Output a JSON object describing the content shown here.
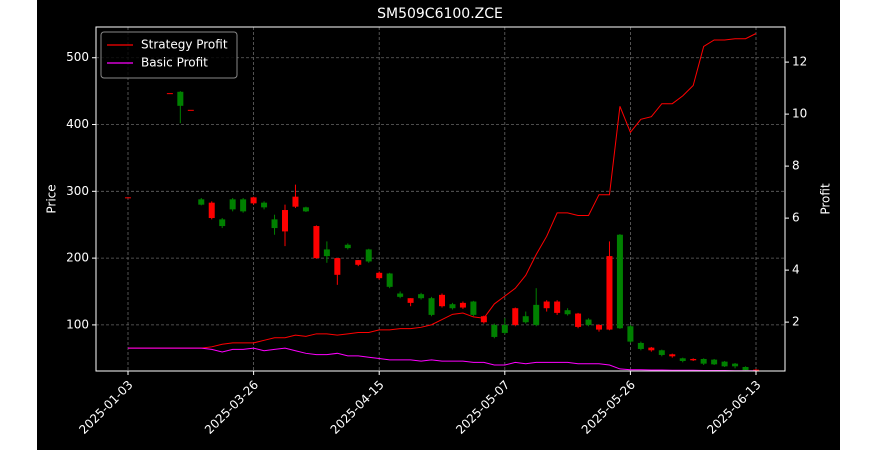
{
  "chart_data": {
    "type": "candlestick",
    "title": "SM509C6100.ZCE",
    "ylabel": "Price",
    "y2label": "Profit",
    "categories": [
      "2025-01-03",
      null,
      null,
      null,
      null,
      null,
      null,
      null,
      null,
      null,
      null,
      null,
      "2025-03-26",
      null,
      null,
      null,
      null,
      null,
      null,
      null,
      null,
      null,
      null,
      null,
      "2025-04-15",
      null,
      null,
      null,
      null,
      null,
      null,
      null,
      null,
      null,
      null,
      null,
      "2025-05-07",
      null,
      null,
      null,
      null,
      null,
      null,
      null,
      null,
      null,
      null,
      null,
      "2025-05-26",
      null,
      null,
      null,
      null,
      null,
      null,
      null,
      null,
      null,
      null,
      null,
      "2025-06-13"
    ],
    "ohlc": {
      "open": [
        291,
        null,
        null,
        null,
        447,
        449,
        422,
        288,
        260,
        258,
        288,
        288,
        282,
        283,
        258,
        240,
        277,
        276,
        200,
        213,
        175,
        220,
        190,
        213,
        170,
        177,
        147,
        133,
        146,
        140,
        128,
        131,
        126,
        135,
        104,
        100,
        100,
        100,
        113,
        130,
        125,
        118,
        122,
        97,
        108,
        93,
        93,
        235,
        98,
        73,
        62,
        62,
        53,
        50,
        47,
        49,
        48,
        45,
        42,
        37,
        31
      ],
      "high": [
        291,
        null,
        null,
        null,
        447,
        450,
        422,
        290,
        285,
        260,
        290,
        290,
        292,
        285,
        265,
        280,
        310,
        277,
        249,
        225,
        200,
        222,
        197,
        214,
        180,
        178,
        150,
        140,
        148,
        142,
        147,
        133,
        135,
        136,
        114,
        102,
        110,
        126,
        120,
        155,
        137,
        137,
        125,
        118,
        110,
        101,
        225,
        236,
        100,
        75,
        67,
        63,
        57,
        51,
        50,
        50,
        49,
        46,
        43,
        38,
        34
      ],
      "low": [
        291,
        null,
        null,
        null,
        447,
        402,
        422,
        279,
        258,
        245,
        270,
        268,
        280,
        273,
        235,
        218,
        275,
        269,
        199,
        193,
        160,
        213,
        188,
        193,
        168,
        155,
        140,
        128,
        138,
        113,
        126,
        123,
        124,
        113,
        102,
        80,
        86,
        98,
        102,
        98,
        120,
        115,
        114,
        95,
        98,
        90,
        92,
        94,
        73,
        62,
        60,
        53,
        51,
        44,
        46,
        40,
        40,
        37,
        35,
        31,
        31
      ],
      "close": [
        291,
        null,
        null,
        null,
        447,
        428,
        422,
        280,
        283,
        248,
        273,
        270,
        291,
        276,
        245,
        272,
        292,
        270,
        248,
        203,
        200,
        215,
        197,
        195,
        178,
        157,
        142,
        140,
        140,
        115,
        145,
        125,
        133,
        115,
        113,
        82,
        88,
        125,
        104,
        100,
        135,
        135,
        116,
        117,
        100,
        100,
        203,
        95,
        75,
        64,
        66,
        55,
        56,
        46,
        49,
        42,
        41,
        38,
        38,
        32,
        33
      ]
    },
    "up_color": "#ff0000",
    "down_color": "#008000",
    "series": [
      {
        "name": "Strategy Profit",
        "color": "#ff0000",
        "axis": "y2",
        "values": [
          1.0,
          1.0,
          1.0,
          1.0,
          1.0,
          1.0,
          1.0,
          1.0,
          1.05,
          1.15,
          1.2,
          1.2,
          1.2,
          1.3,
          1.4,
          1.4,
          1.5,
          1.45,
          1.55,
          1.55,
          1.5,
          1.55,
          1.6,
          1.6,
          1.7,
          1.7,
          1.75,
          1.75,
          1.8,
          1.9,
          2.1,
          2.3,
          2.35,
          2.2,
          2.15,
          2.7,
          3.0,
          3.3,
          3.8,
          4.6,
          5.3,
          6.2,
          6.2,
          6.1,
          6.1,
          6.9,
          6.9,
          10.3,
          9.3,
          9.8,
          9.9,
          10.4,
          10.4,
          10.7,
          11.1,
          12.6,
          12.85,
          12.85,
          12.9,
          12.9,
          13.1
        ]
      },
      {
        "name": "Basic Profit",
        "color": "#ff00ff",
        "axis": "y2",
        "values": [
          1.0,
          1.0,
          1.0,
          1.0,
          1.0,
          1.0,
          1.0,
          1.0,
          0.95,
          0.85,
          0.95,
          0.95,
          1.0,
          0.9,
          0.95,
          1.0,
          0.9,
          0.8,
          0.75,
          0.75,
          0.8,
          0.7,
          0.7,
          0.65,
          0.6,
          0.55,
          0.55,
          0.55,
          0.5,
          0.55,
          0.5,
          0.5,
          0.5,
          0.45,
          0.45,
          0.35,
          0.35,
          0.45,
          0.4,
          0.45,
          0.45,
          0.45,
          0.45,
          0.4,
          0.4,
          0.4,
          0.35,
          0.2,
          0.17,
          0.17,
          0.16,
          0.16,
          0.15,
          0.15,
          0.15,
          0.14,
          0.14,
          0.14,
          0.13,
          0.13,
          0.13
        ]
      }
    ],
    "ylim": [
      31,
      546
    ],
    "yticks": [
      100,
      200,
      300,
      400,
      500
    ],
    "y2lim": [
      0.12,
      13.35
    ],
    "y2ticks": [
      2,
      4,
      6,
      8,
      10,
      12
    ],
    "grid": true,
    "legend": "upper left"
  }
}
